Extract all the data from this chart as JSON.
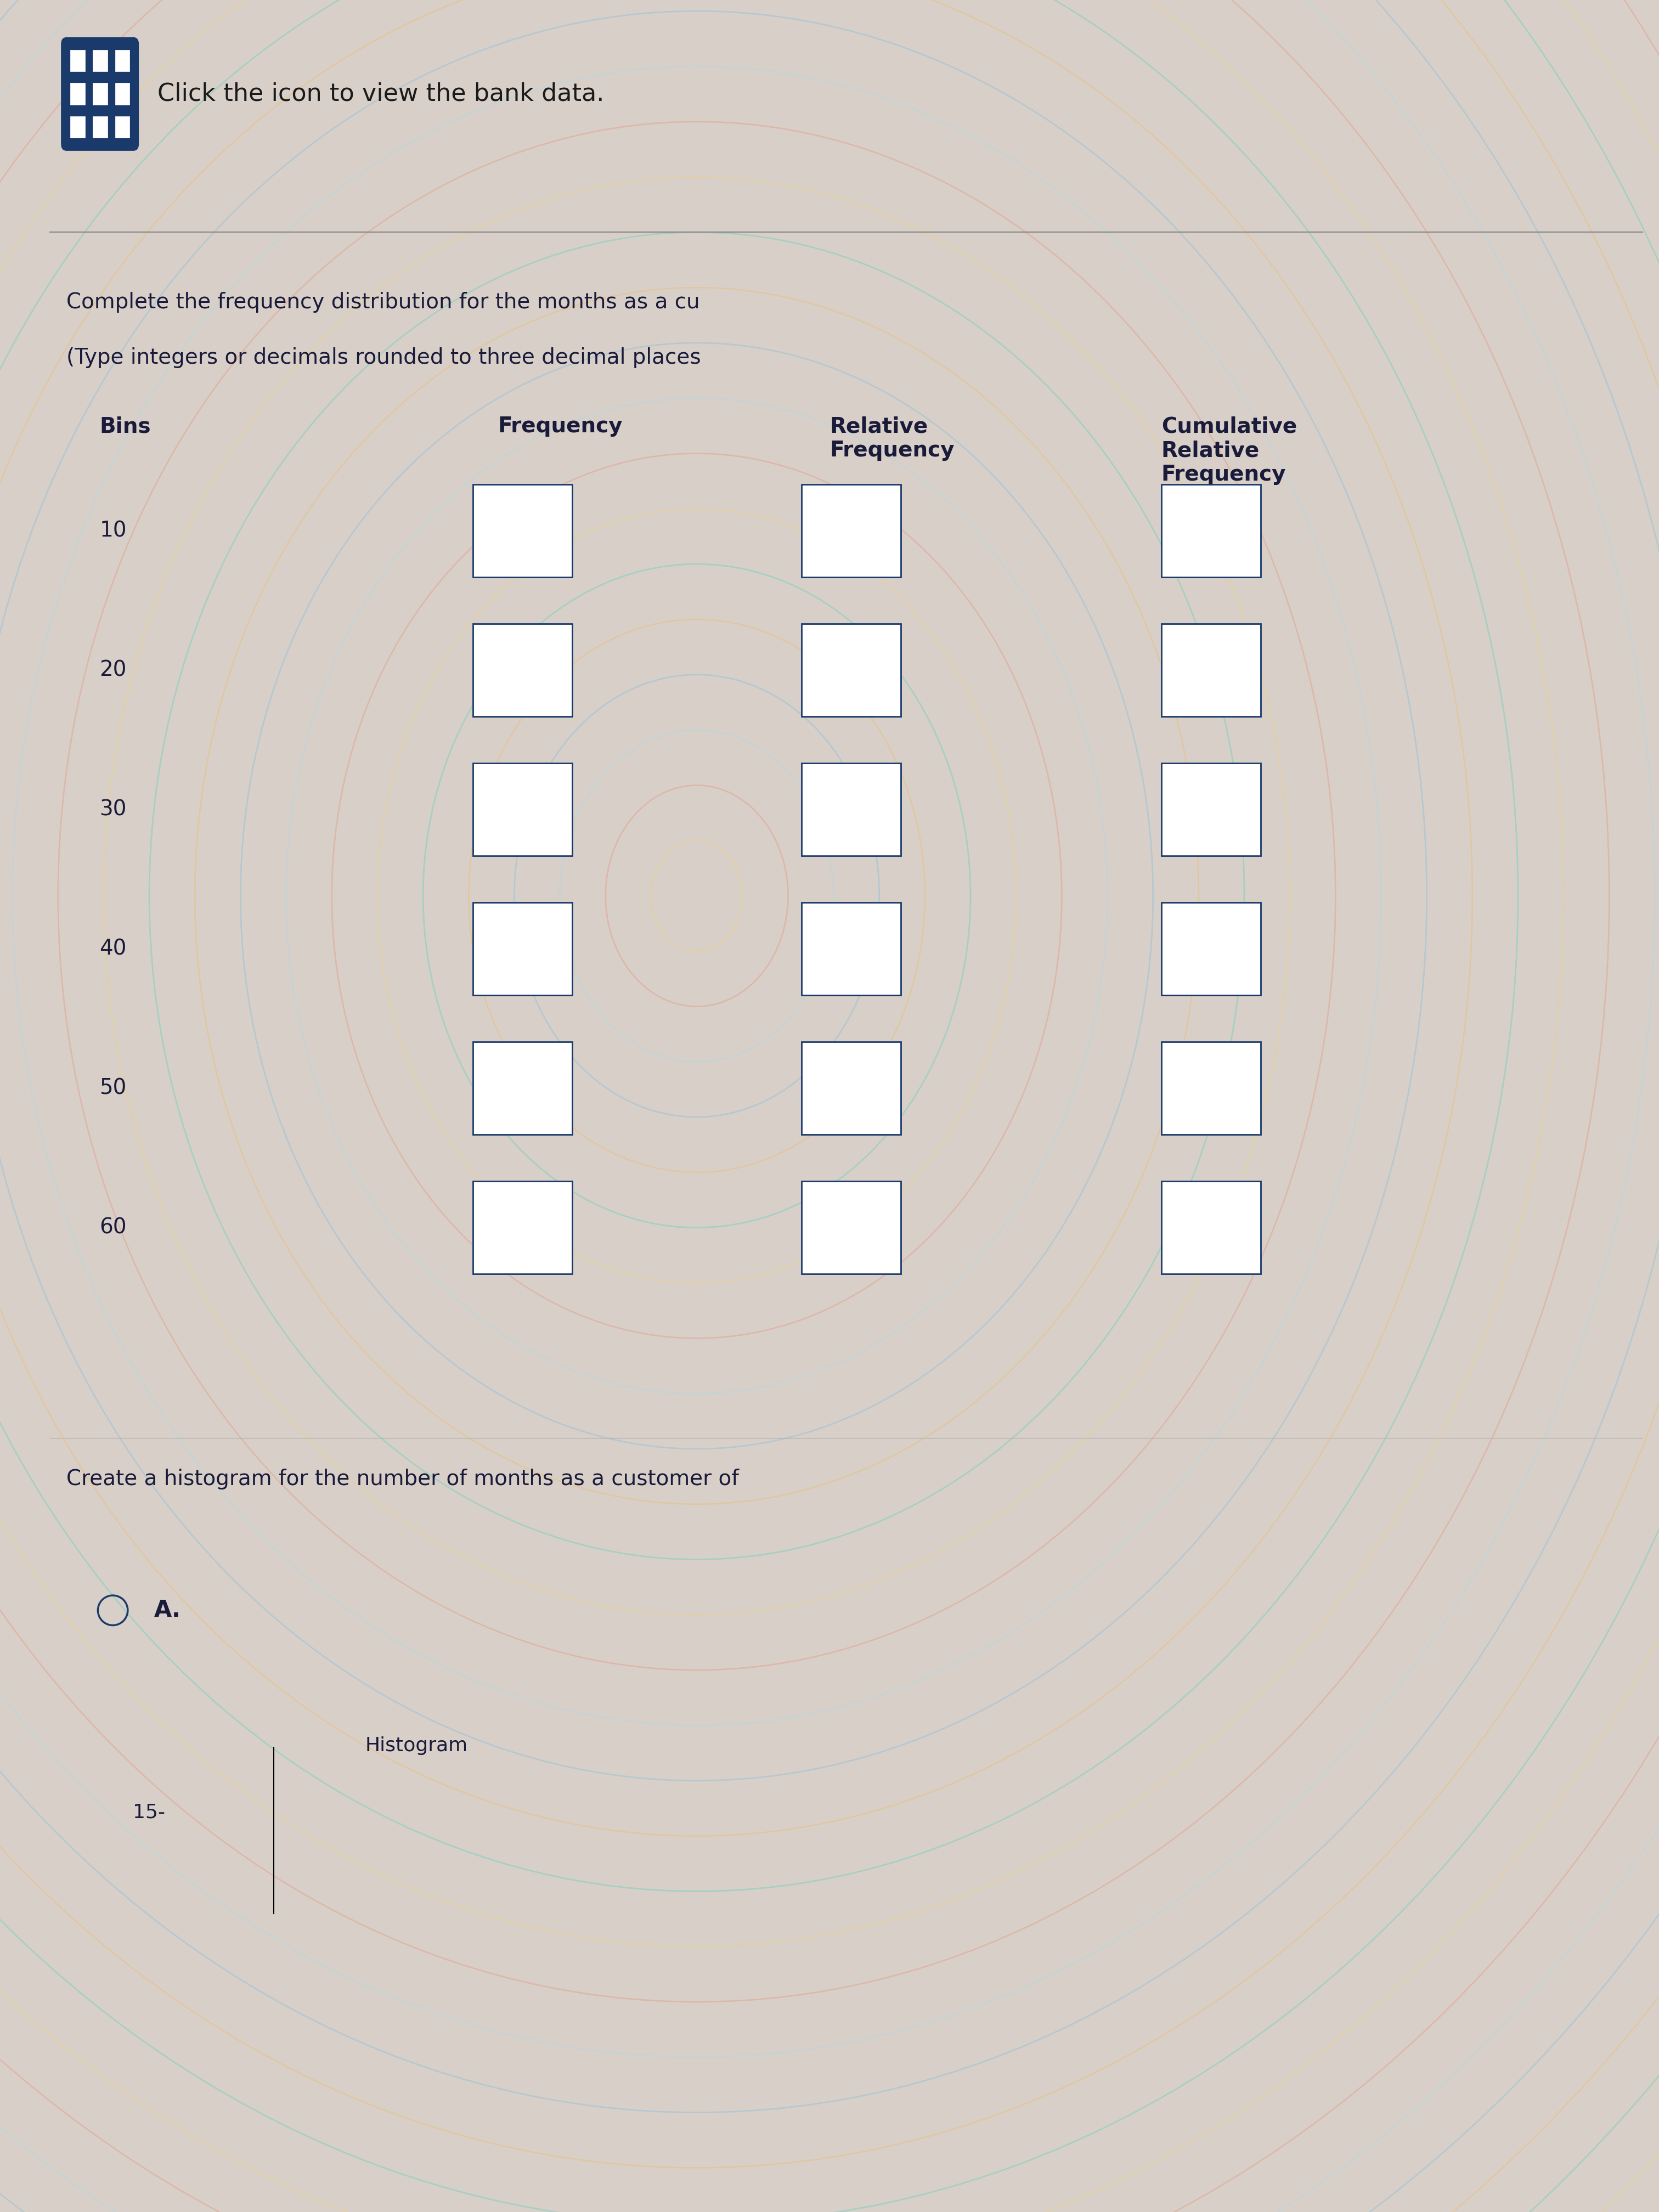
{
  "bg_color": "#d8d0c8",
  "icon_color": "#1a3a6b",
  "icon_text": "Click the icon to view the bank data.",
  "instruction_line1": "Complete the frequency distribution for the months as a cu",
  "instruction_line2": "(Type integers or decimals rounded to three decimal places",
  "bins": [
    "10",
    "20",
    "30",
    "40",
    "50",
    "60"
  ],
  "box_color": "#1a3a6b",
  "bottom_instruction": "Create a histogram for the number of months as a customer of",
  "histogram_title": "Histogram",
  "histogram_y_start": "15-",
  "text_color_dark": "#1a1a3a",
  "header_text_color": "#1a1a3a"
}
